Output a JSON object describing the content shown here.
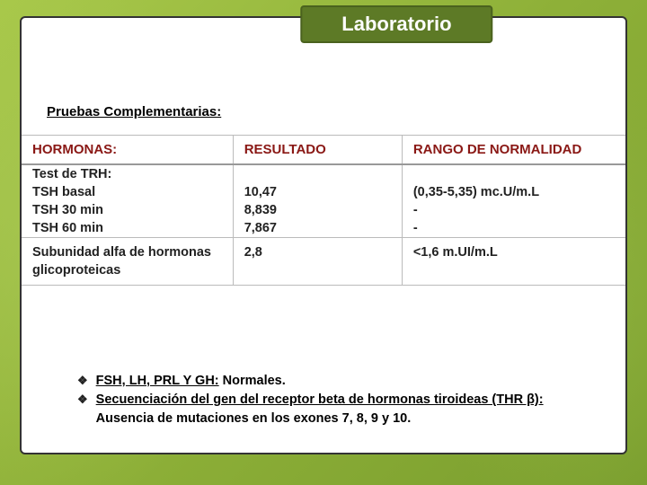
{
  "title": "Laboratorio",
  "subtitle": "Pruebas Complementarias:",
  "table": {
    "header_color": "#8a1815",
    "columns": [
      "HORMONAS:",
      "RESULTADO",
      "RANGO DE NORMALIDAD"
    ],
    "rows": [
      {
        "c0": "Test de TRH:",
        "c1": "",
        "c2": ""
      },
      {
        "c0": "TSH basal",
        "c1": "10,47",
        "c2": "(0,35-5,35) mc.U/m.L"
      },
      {
        "c0": "TSH 30 min",
        "c1": "8,839",
        "c2": "-"
      },
      {
        "c0": "TSH 60 min",
        "c1": "7,867",
        "c2": "-"
      },
      {
        "c0_a": "Subunidad alfa de hormonas",
        "c0_b": "glicoproteicas",
        "c1": "2,8",
        "c2": "<1,6 m.UI/m.L"
      }
    ]
  },
  "bullets": [
    {
      "uline": "FSH, LH, PRL Y GH:",
      "rest": " Normales."
    },
    {
      "uline": "Secuenciación del gen del receptor beta de hormonas tiroideas (THR β):",
      "rest": "Ausencia de mutaciones en los exones 7, 8, 9 y 10."
    }
  ],
  "style": {
    "slide_bg": "#ffffff",
    "frame_border": "#333333",
    "title_bg": "#5d7a26",
    "title_border": "#4a621e",
    "title_color": "#ffffff",
    "grid_color": "#bbbbbb",
    "bullet_glyph": "❖"
  }
}
